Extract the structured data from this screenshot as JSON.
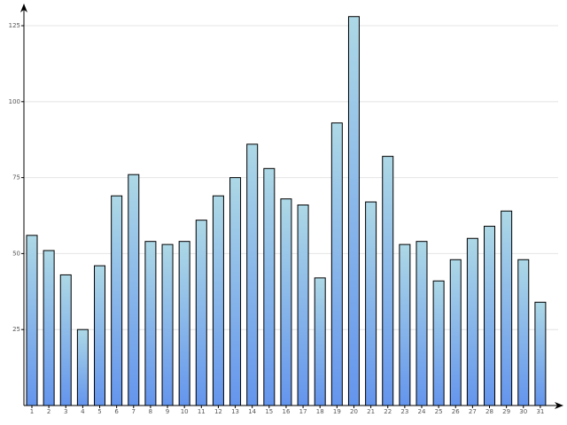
{
  "chart_data": {
    "type": "bar",
    "categories": [
      "1",
      "2",
      "3",
      "4",
      "5",
      "6",
      "7",
      "8",
      "9",
      "10",
      "11",
      "12",
      "13",
      "14",
      "15",
      "16",
      "17",
      "18",
      "19",
      "20",
      "21",
      "22",
      "23",
      "24",
      "25",
      "26",
      "27",
      "28",
      "29",
      "30",
      "31"
    ],
    "values": [
      56,
      51,
      43,
      25,
      46,
      69,
      76,
      54,
      53,
      54,
      61,
      69,
      75,
      86,
      78,
      68,
      66,
      42,
      93,
      128,
      67,
      82,
      53,
      54,
      41,
      48,
      55,
      59,
      64,
      48,
      34
    ],
    "ylim": [
      0,
      132
    ],
    "yticks": [
      25,
      50,
      75,
      100,
      125
    ],
    "grid": true,
    "color": "#6495ed"
  }
}
